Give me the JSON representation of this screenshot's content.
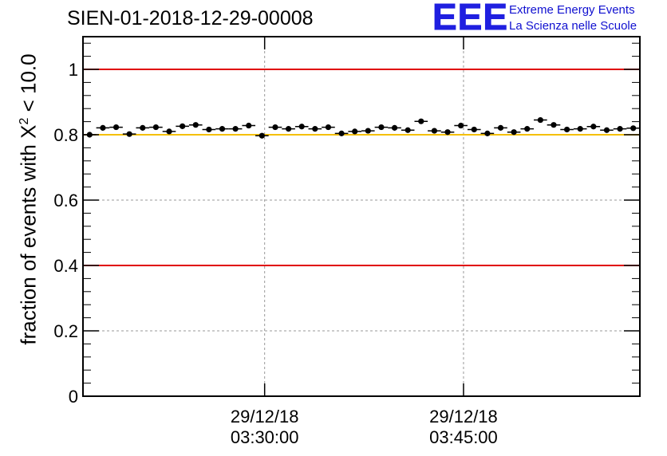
{
  "title": "SIEN-01-2018-12-29-00008",
  "logo": {
    "mark": "EEE",
    "line1": "Extreme Energy Events",
    "line2": "La Scienza nelle Scuole"
  },
  "colors": {
    "limit_line": "#e00000",
    "threshold_line": "#f5c000",
    "marker": "#000000",
    "grid": "#999999",
    "logo": "#1f1fe0"
  },
  "chart_data": {
    "type": "scatter",
    "title": "SIEN-01-2018-12-29-00008",
    "ylabel_prefix": "fraction of events with X",
    "ylabel_sup": "2",
    "ylabel_suffix": " < 10.0",
    "xlabel": "",
    "ylim": [
      0,
      1.1
    ],
    "xlim_minutes": [
      0,
      42
    ],
    "yticks": [
      {
        "value": 0,
        "label": "0"
      },
      {
        "value": 0.2,
        "label": "0.2"
      },
      {
        "value": 0.4,
        "label": "0.4"
      },
      {
        "value": 0.6,
        "label": "0.6"
      },
      {
        "value": 0.8,
        "label": "0.8"
      },
      {
        "value": 1,
        "label": "1"
      }
    ],
    "xticks": [
      {
        "minute": 13.7,
        "date": "29/12/18",
        "time": "03:30:00"
      },
      {
        "minute": 28.7,
        "date": "29/12/18",
        "time": "03:45:00"
      }
    ],
    "reference_lines": [
      {
        "value": 1.0,
        "color": "#e00000"
      },
      {
        "value": 0.8,
        "color": "#f5c000"
      },
      {
        "value": 0.4,
        "color": "#e00000"
      }
    ],
    "series": [
      {
        "name": "fraction",
        "bin_width_minutes": 1,
        "x": [
          0.5,
          1.5,
          2.5,
          3.5,
          4.5,
          5.5,
          6.5,
          7.5,
          8.5,
          9.5,
          10.5,
          11.5,
          12.5,
          13.5,
          14.5,
          15.5,
          16.5,
          17.5,
          18.5,
          19.5,
          20.5,
          21.5,
          22.5,
          23.5,
          24.5,
          25.5,
          26.5,
          27.5,
          28.5,
          29.5,
          30.5,
          31.5,
          32.5,
          33.5,
          34.5,
          35.5,
          36.5,
          37.5,
          38.5,
          39.5,
          40.5,
          41.5
        ],
        "y": [
          0.8,
          0.821,
          0.823,
          0.802,
          0.821,
          0.823,
          0.81,
          0.826,
          0.83,
          0.816,
          0.818,
          0.818,
          0.828,
          0.797,
          0.823,
          0.818,
          0.825,
          0.818,
          0.823,
          0.804,
          0.81,
          0.812,
          0.823,
          0.821,
          0.814,
          0.841,
          0.812,
          0.808,
          0.828,
          0.816,
          0.804,
          0.821,
          0.808,
          0.818,
          0.845,
          0.83,
          0.816,
          0.818,
          0.825,
          0.814,
          0.818,
          0.82
        ],
        "yerr": 0.006
      }
    ]
  }
}
